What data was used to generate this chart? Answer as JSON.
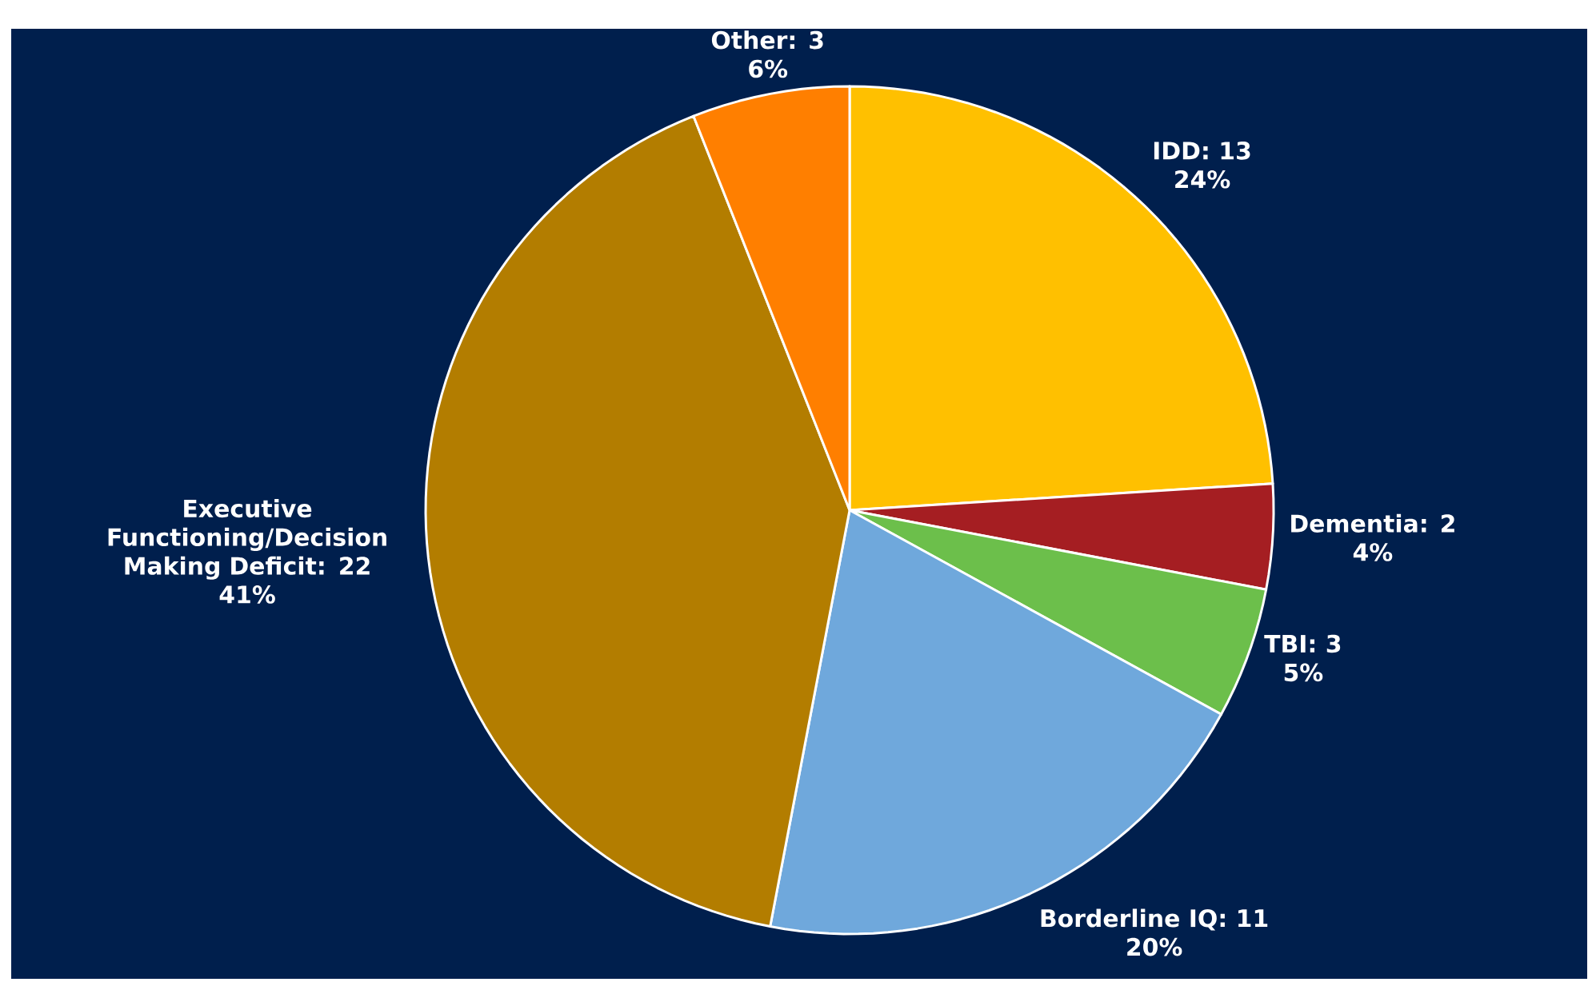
{
  "chart_data": {
    "type": "pie",
    "categories": [
      "IDD: 13",
      "Dementia: 2",
      "TBI: 3",
      "Borderline IQ: 11",
      "Executive Functioning/Decision Making Deficit: 22",
      "Other: 3"
    ],
    "values": [
      24,
      4,
      5,
      20,
      41,
      6
    ],
    "colors": [
      "#ffc000",
      "#a51e22",
      "#6cbf4b",
      "#6fa8dc",
      "#b37d00",
      "#ff7f00"
    ],
    "value_labels": [
      "24%",
      "4%",
      "5%",
      "20%",
      "41%",
      "6%"
    ]
  }
}
